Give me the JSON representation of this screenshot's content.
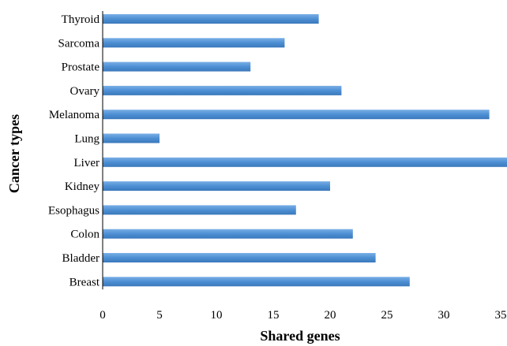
{
  "chart_data": {
    "type": "bar",
    "orientation": "horizontal",
    "categories": [
      "Thyroid",
      "Sarcoma",
      "Prostate",
      "Ovary",
      "Melanoma",
      "Lung",
      "Liver",
      "Kidney",
      "Esophagus",
      "Colon",
      "Bladder",
      "Breast"
    ],
    "series": [
      {
        "values": [
          19,
          16,
          13,
          21,
          34,
          5,
          36,
          20,
          17,
          22,
          24,
          27
        ]
      }
    ],
    "xlabel": "Shared genes",
    "ylabel": "Cancer types",
    "xlim": [
      0,
      36
    ],
    "xticks": [
      0,
      5,
      10,
      15,
      20,
      25,
      30,
      35
    ],
    "grid": false,
    "legend": "none",
    "bar_color": "#4d8fd3"
  }
}
